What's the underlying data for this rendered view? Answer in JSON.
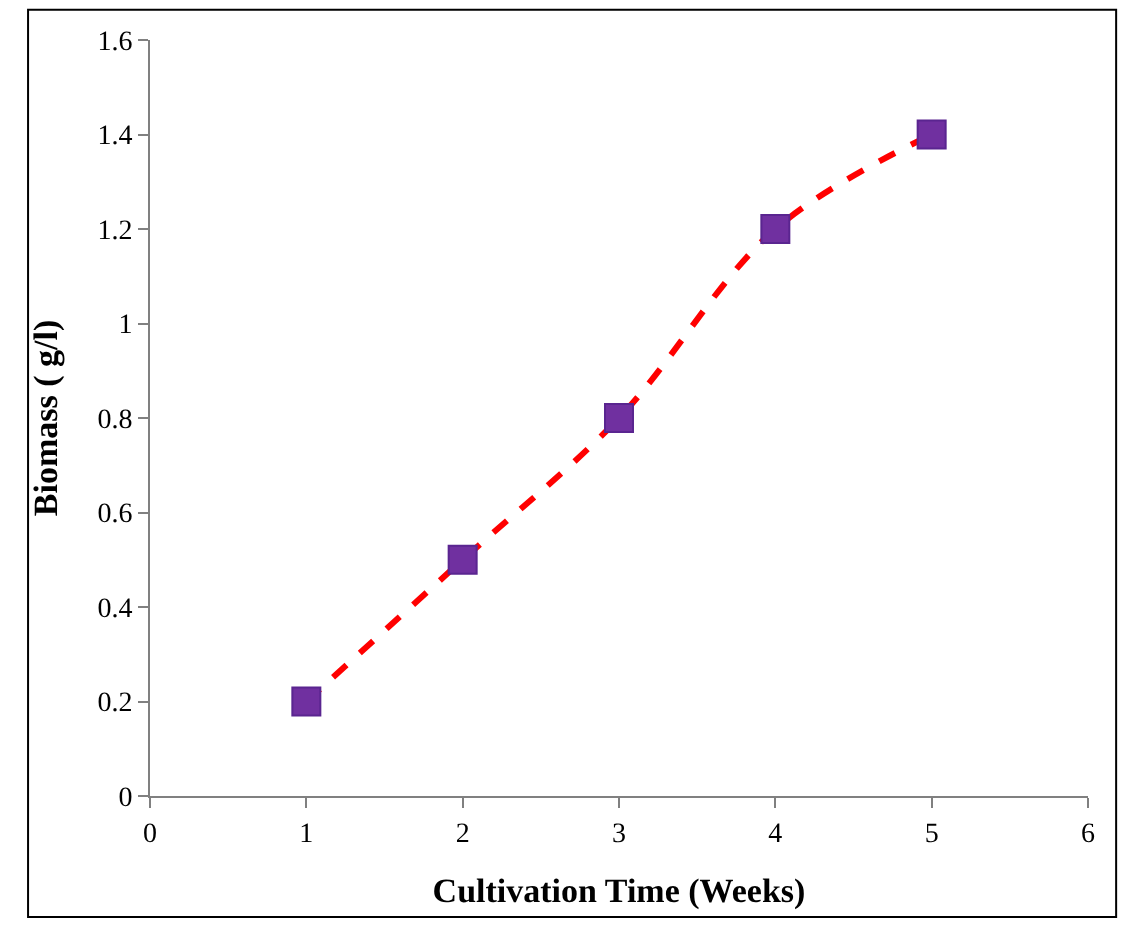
{
  "chart_data": {
    "type": "line",
    "xlabel": "Cultivation Time (Weeks)",
    "ylabel": "Biomass ( g/l)",
    "x": [
      1,
      2,
      3,
      4,
      5
    ],
    "series": [
      {
        "color": "#ff0000",
        "colors": [
          "#7030a0",
          "#7030a0",
          "#7030a0",
          "#7030a0",
          "#7030a0"
        ],
        "values": [
          0.2,
          0.5,
          0.8,
          1.2,
          1.4
        ]
      }
    ],
    "xlim": [
      0,
      6
    ],
    "xticks": [
      0,
      1,
      2,
      3,
      4,
      5,
      6
    ],
    "ylim": [
      0,
      1.6
    ],
    "yticks": [
      0,
      0.2,
      0.4,
      0.6,
      0.8,
      1,
      1.2,
      1.4,
      1.6
    ],
    "marker": "square",
    "line_style": "dashed"
  }
}
